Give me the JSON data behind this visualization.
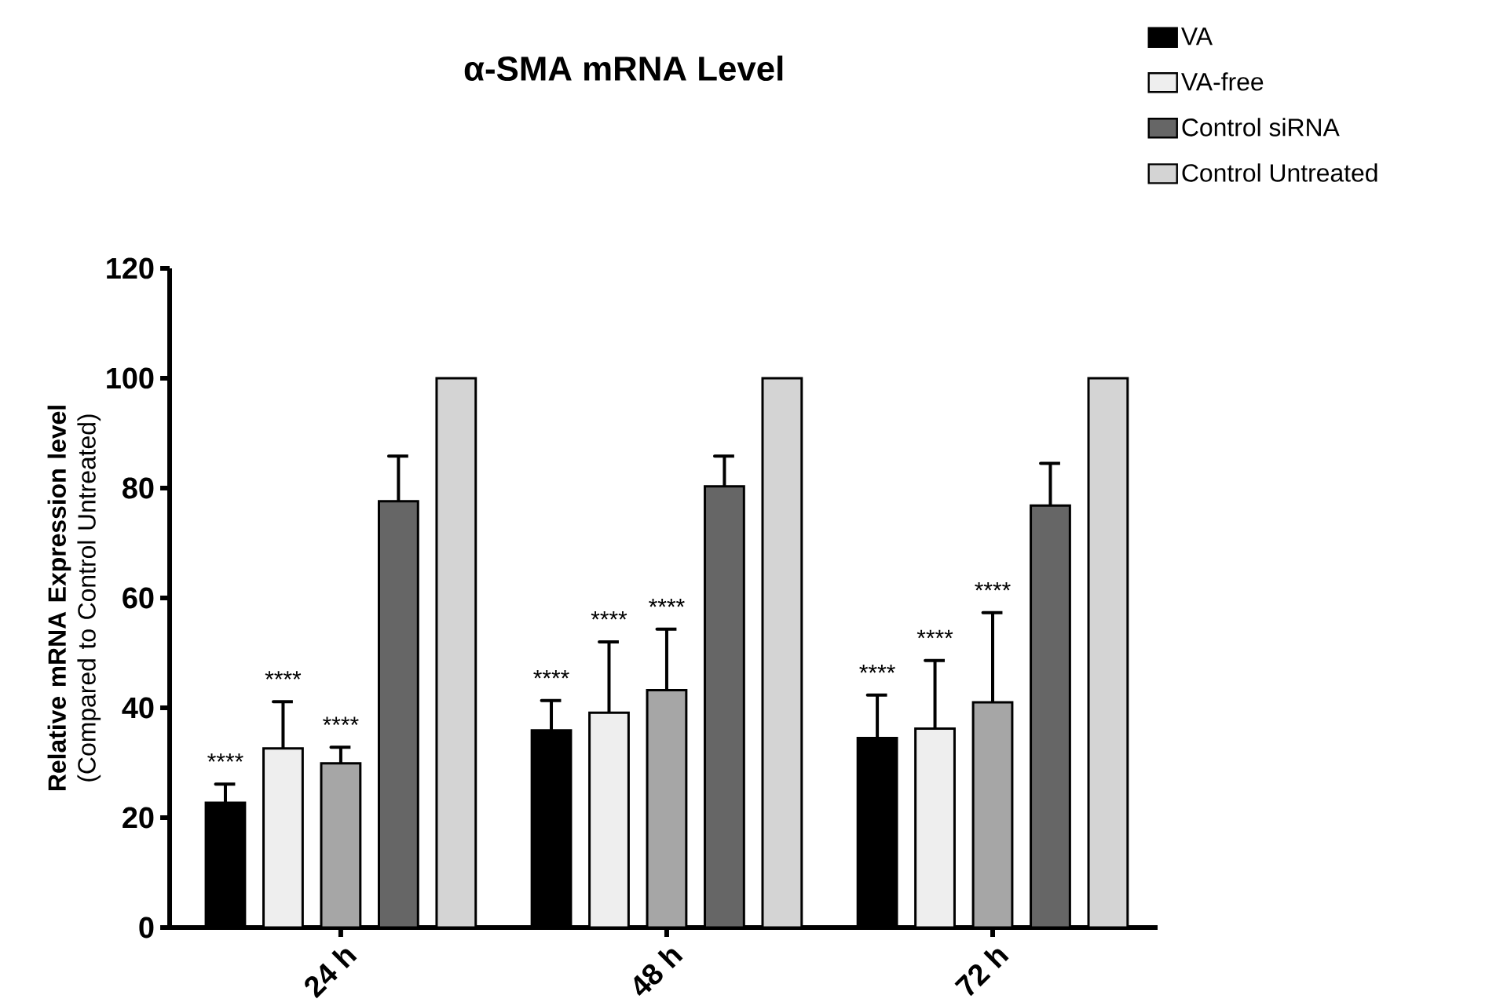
{
  "chart_data": {
    "type": "bar",
    "title": "α-SMA mRNA Level",
    "ylabel": "**Relative mRNA Expression level** (Compared to Control Untreated)",
    "categories": [
      "24 h",
      "48 h",
      "72 h"
    ],
    "series": [
      {
        "name": "VA",
        "color": "#000000",
        "values": [
          22.7,
          35.9,
          34.5
        ],
        "errors": [
          [
            22.7,
            26.1
          ],
          [
            35.9,
            41.3
          ],
          [
            34.5,
            42.3
          ]
        ]
      },
      {
        "name": "VA-free",
        "color": "#eeeeee",
        "values": [
          32.6,
          39.1,
          36.2
        ],
        "errors": [
          [
            32.6,
            41.1
          ],
          [
            39.1,
            52.0
          ],
          [
            36.2,
            48.6
          ]
        ]
      },
      {
        "color": "#a6a6a6",
        "values": [
          29.9,
          43.2,
          41.0
        ],
        "errors": [
          [
            29.9,
            32.8
          ],
          [
            43.2,
            54.3
          ],
          [
            41.0,
            57.3
          ]
        ]
      },
      {
        "name": "Control siRNA",
        "color": "#666666",
        "values": [
          77.6,
          80.3,
          76.8
        ],
        "errors": [
          [
            77.6,
            85.8
          ],
          [
            80.3,
            85.8
          ],
          [
            76.8,
            84.5
          ]
        ]
      },
      {
        "name": "Control Untreated",
        "color": "#d4d4d4",
        "values": [
          100,
          100,
          100
        ]
      }
    ],
    "ylim": [
      0,
      120
    ],
    "yticks": [
      0,
      20,
      40,
      60,
      80,
      100,
      120
    ],
    "grid": false,
    "legend": "top right",
    "annotations": [
      "****",
      "****",
      "****",
      "****",
      "****",
      "****",
      "****",
      "****",
      "****"
    ]
  }
}
